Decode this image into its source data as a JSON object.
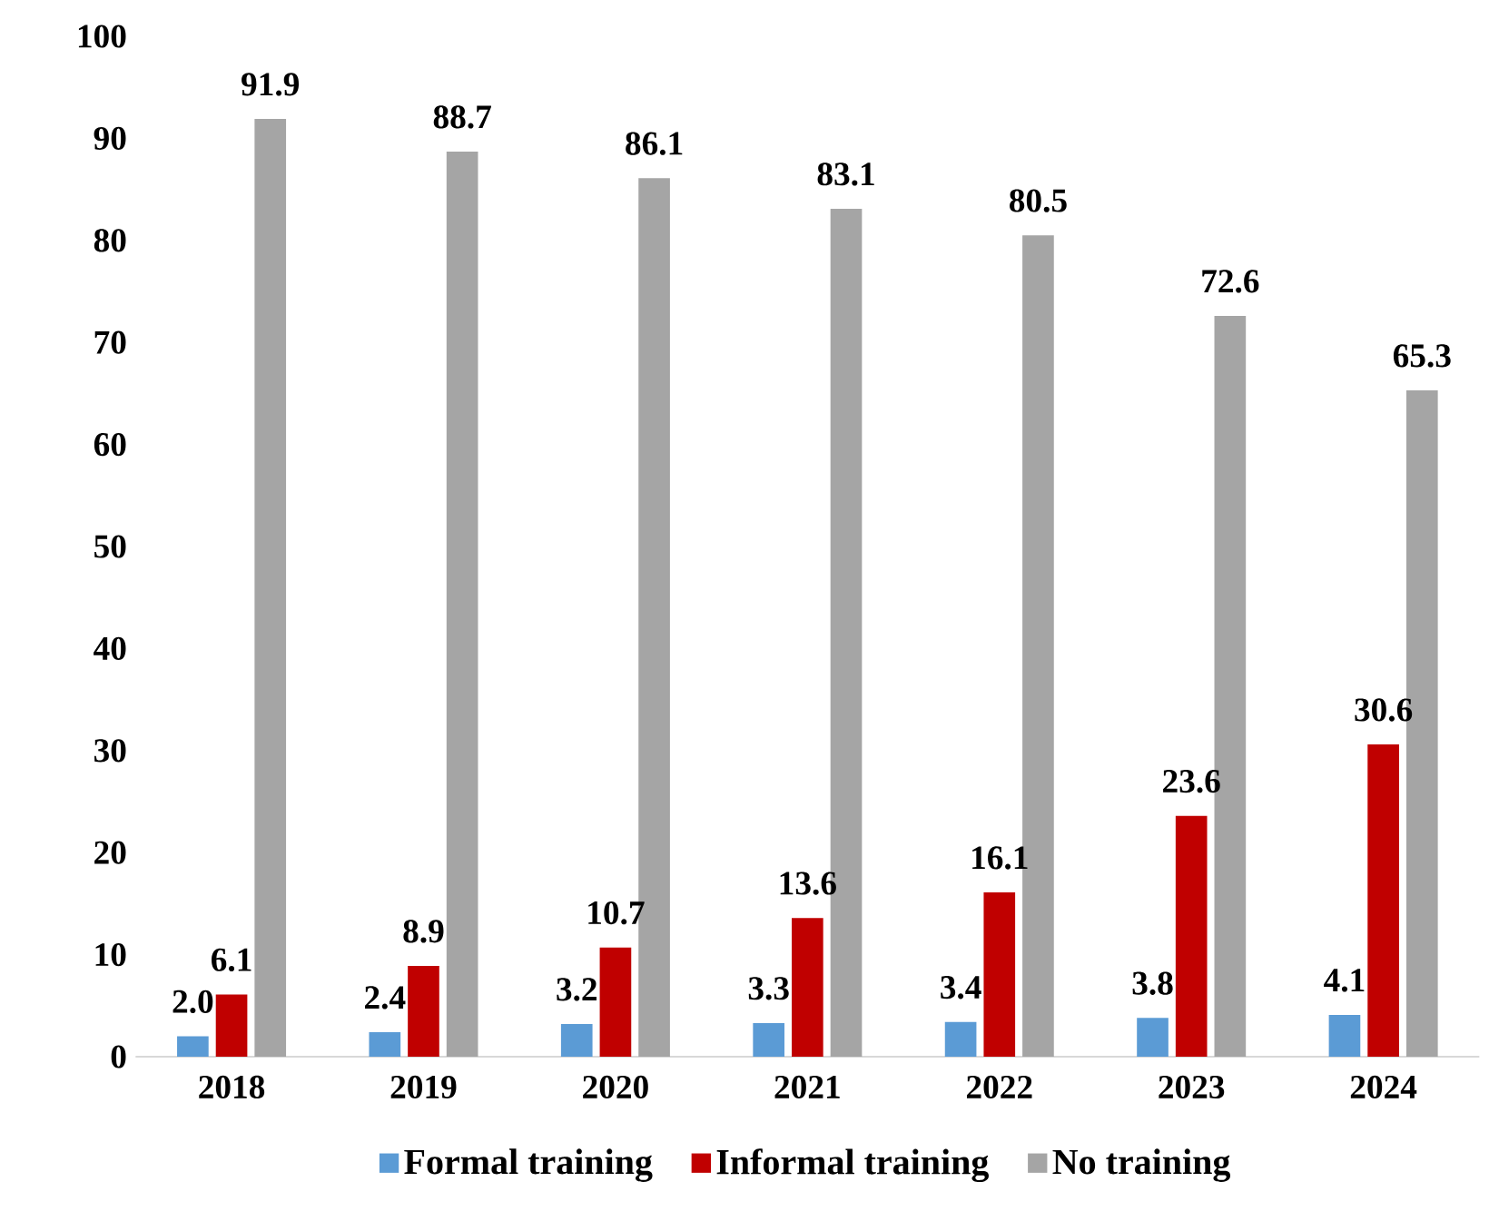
{
  "chart_data": {
    "type": "bar",
    "categories": [
      "2018",
      "2019",
      "2020",
      "2021",
      "2022",
      "2023",
      "2024"
    ],
    "series": [
      {
        "name": "Formal training",
        "color": "#5b9bd5",
        "values": [
          2.0,
          2.4,
          3.2,
          3.3,
          3.4,
          3.8,
          4.1
        ],
        "value_labels": [
          "2.0",
          "2.4",
          "3.2",
          "3.3",
          "3.4",
          "3.8",
          "4.1"
        ]
      },
      {
        "name": "Informal training",
        "color": "#c00000",
        "values": [
          6.1,
          8.9,
          10.7,
          13.6,
          16.1,
          23.6,
          30.6
        ],
        "value_labels": [
          "6.1",
          "8.9",
          "10.7",
          "13.6",
          "16.1",
          "23.6",
          "30.6"
        ]
      },
      {
        "name": "No training",
        "color": "#a5a5a5",
        "values": [
          91.9,
          88.7,
          86.1,
          83.1,
          80.5,
          72.6,
          65.3
        ],
        "value_labels": [
          "91.9",
          "88.7",
          "86.1",
          "83.1",
          "80.5",
          "72.6",
          "65.3"
        ]
      }
    ],
    "ylim": [
      0,
      100
    ],
    "yticks": [
      0,
      10,
      20,
      30,
      40,
      50,
      60,
      70,
      80,
      90,
      100
    ],
    "legend": "bottom"
  }
}
